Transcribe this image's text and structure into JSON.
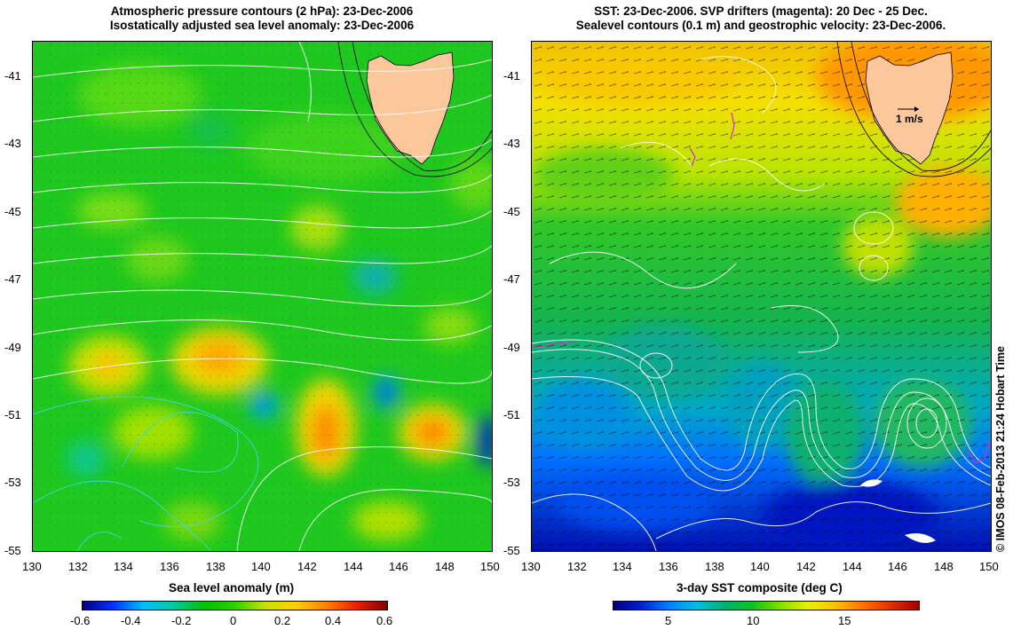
{
  "left_panel": {
    "title_line1": "Atmospheric pressure contours (2 hPa): 23-Dec-2006",
    "title_line2": "Isostatically adjusted sea level anomaly: 23-Dec-2006",
    "colorbar": {
      "label": "Sea level anomaly (m)",
      "ticks": [
        "-0.6",
        "-0.4",
        "-0.2",
        "0",
        "0.2",
        "0.4",
        "0.6"
      ],
      "range": [
        -0.6,
        0.6
      ],
      "colors": [
        "#00007f",
        "#0030ff",
        "#00c0ff",
        "#00c8a0",
        "#00c000",
        "#30d000",
        "#c8e000",
        "#ffd000",
        "#ff8000",
        "#e82000",
        "#800000"
      ]
    }
  },
  "right_panel": {
    "title_line1": "SST: 23-Dec-2006. SVP drifters (magenta): 20 Dec - 25 Dec.",
    "title_line2": "Sealevel contours (0.1 m) and geostrophic velocity: 23-Dec-2006.",
    "velocity_scale_label": "1 m/s",
    "colorbar": {
      "label": "3-day SST composite (deg C)",
      "ticks": [
        "5",
        "10",
        "15"
      ],
      "range": [
        2,
        20
      ],
      "colors": [
        "#000080",
        "#0020d0",
        "#0080ff",
        "#00c0e0",
        "#00b070",
        "#10c020",
        "#80e000",
        "#e8f000",
        "#ffc000",
        "#ff7000",
        "#e03000",
        "#a00000"
      ]
    }
  },
  "axes": {
    "x_ticks": [
      "130",
      "132",
      "134",
      "136",
      "138",
      "140",
      "142",
      "144",
      "146",
      "148",
      "150"
    ],
    "y_ticks": [
      "-41",
      "-43",
      "-45",
      "-47",
      "-49",
      "-51",
      "-53",
      "-55"
    ],
    "xlim": [
      130,
      150
    ],
    "ylim": [
      -55,
      -40
    ]
  },
  "credit": "© IMOS 08-Feb-2013 21:24 Hobart Time",
  "colors": {
    "land": "#fcc79a",
    "coast": "#000000",
    "drifter": "#cc33cc",
    "contour_white": "#ffffff",
    "contour_cyan": "#40d8d8"
  }
}
